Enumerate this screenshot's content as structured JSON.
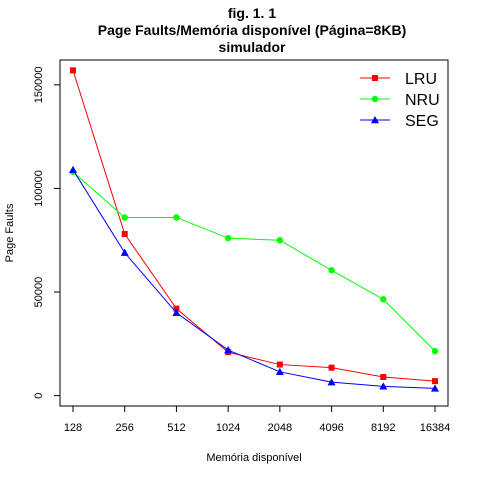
{
  "chart_data": {
    "type": "line",
    "title": [
      "fig. 1. 1",
      "Page Faults/Memória disponível (Página=8KB)",
      "simulador"
    ],
    "xlabel": "Memória disponível",
    "ylabel": "Page Faults",
    "categories": [
      "128",
      "256",
      "512",
      "1024",
      "2048",
      "4096",
      "8192",
      "16384"
    ],
    "ylim": [
      -5000,
      162000
    ],
    "yticks": [
      0,
      50000,
      100000,
      150000
    ],
    "yticks_labels": [
      "0",
      "50000",
      "100000",
      "150000"
    ],
    "legend_position": "top-right",
    "grid": false,
    "series": [
      {
        "name": "LRU",
        "color": "#ff0000",
        "marker": "square",
        "values": [
          157000,
          78000,
          42000,
          21000,
          15000,
          13500,
          9000,
          7000
        ]
      },
      {
        "name": "NRU",
        "color": "#00ff00",
        "marker": "circle",
        "values": [
          108000,
          86000,
          86000,
          76000,
          75000,
          60500,
          46500,
          21500
        ]
      },
      {
        "name": "SEG",
        "color": "#0000ff",
        "marker": "triangle",
        "values": [
          109000,
          69000,
          40000,
          22000,
          11500,
          6500,
          4500,
          3500
        ]
      }
    ]
  }
}
